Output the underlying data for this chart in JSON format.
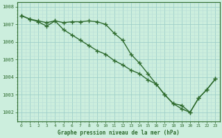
{
  "line1_y": [
    1007.5,
    1007.3,
    1007.2,
    1007.1,
    1007.2,
    1007.1,
    1007.15,
    1007.15,
    1007.2,
    1007.15,
    1007.0,
    1006.5,
    1006.1,
    1005.3,
    1004.8,
    1004.2,
    1003.6,
    1003.0,
    1002.5,
    1002.2,
    1002.0,
    1002.8,
    1003.3,
    1003.9
  ],
  "line2_y": [
    1007.5,
    1007.3,
    1007.15,
    1006.9,
    1007.2,
    1006.7,
    1006.4,
    1006.1,
    1005.8,
    1005.5,
    1005.3,
    1004.95,
    1004.7,
    1004.4,
    1004.2,
    1003.85,
    1003.6,
    1003.0,
    1002.5,
    1002.4,
    1002.0,
    1002.8,
    1003.3,
    1003.9
  ],
  "x": [
    0,
    1,
    2,
    3,
    4,
    5,
    6,
    7,
    8,
    9,
    10,
    11,
    12,
    13,
    14,
    15,
    16,
    17,
    18,
    19,
    20,
    21,
    22,
    23
  ],
  "line_color": "#2d6a2d",
  "bg_color": "#cceedd",
  "grid_color_minor": "#b8ddd8",
  "grid_color_major": "#9fcfca",
  "xlabel_text": "Graphe pression niveau de la mer (hPa)",
  "ylim": [
    1001.5,
    1008.25
  ],
  "yticks": [
    1002,
    1003,
    1004,
    1005,
    1006,
    1007,
    1008
  ],
  "xticks": [
    0,
    1,
    2,
    3,
    4,
    5,
    6,
    7,
    8,
    9,
    10,
    11,
    12,
    13,
    14,
    15,
    16,
    17,
    18,
    19,
    20,
    21,
    22,
    23
  ],
  "marker": "+",
  "markersize": 5,
  "linewidth": 1.0
}
